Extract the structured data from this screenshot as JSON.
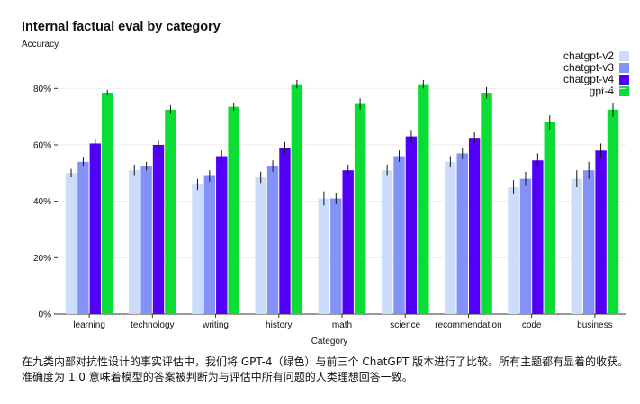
{
  "chart_data": {
    "type": "bar",
    "title": "Internal factual eval by category",
    "ylabel": "Accuracy",
    "xlabel": "Category",
    "ylim": [
      0,
      0.9
    ],
    "yticks": [
      {
        "value": 0,
        "label": "0%"
      },
      {
        "value": 0.2,
        "label": "20%"
      },
      {
        "value": 0.4,
        "label": "40%"
      },
      {
        "value": 0.6,
        "label": "60%"
      },
      {
        "value": 0.8,
        "label": "80%"
      }
    ],
    "grid": true,
    "legend_position": "top-right",
    "categories": [
      "learning",
      "technology",
      "writing",
      "history",
      "math",
      "science",
      "recommendation",
      "code",
      "business"
    ],
    "series": [
      {
        "name": "chatgpt-v2",
        "color": "#ccdcfb",
        "values": [
          0.5,
          0.51,
          0.46,
          0.485,
          0.41,
          0.51,
          0.54,
          0.45,
          0.48
        ],
        "errors": [
          0.015,
          0.02,
          0.02,
          0.02,
          0.025,
          0.02,
          0.02,
          0.025,
          0.03
        ]
      },
      {
        "name": "chatgpt-v3",
        "color": "#8491f7",
        "values": [
          0.54,
          0.525,
          0.49,
          0.525,
          0.41,
          0.56,
          0.57,
          0.48,
          0.51
        ],
        "errors": [
          0.015,
          0.015,
          0.02,
          0.02,
          0.02,
          0.02,
          0.02,
          0.025,
          0.03
        ]
      },
      {
        "name": "chatgpt-v4",
        "color": "#5200f5",
        "values": [
          0.605,
          0.6,
          0.56,
          0.59,
          0.51,
          0.63,
          0.625,
          0.545,
          0.58
        ],
        "errors": [
          0.015,
          0.015,
          0.02,
          0.02,
          0.02,
          0.02,
          0.02,
          0.025,
          0.025
        ]
      },
      {
        "name": "gpt-4",
        "color": "#0bdd34",
        "values": [
          0.785,
          0.725,
          0.735,
          0.815,
          0.745,
          0.815,
          0.785,
          0.68,
          0.725
        ],
        "errors": [
          0.01,
          0.015,
          0.015,
          0.015,
          0.02,
          0.015,
          0.02,
          0.025,
          0.025
        ]
      }
    ]
  },
  "caption_lines": [
    "在九类内部对抗性设计的事实评估中，我们将 GPT-4（绿色）与前三个 ChatGPT 版本进行了比较。所有主题都有显着的收获。",
    "准确度为 1.0 意味着模型的答案被判断为与评估中所有问题的人类理想回答一致。"
  ]
}
